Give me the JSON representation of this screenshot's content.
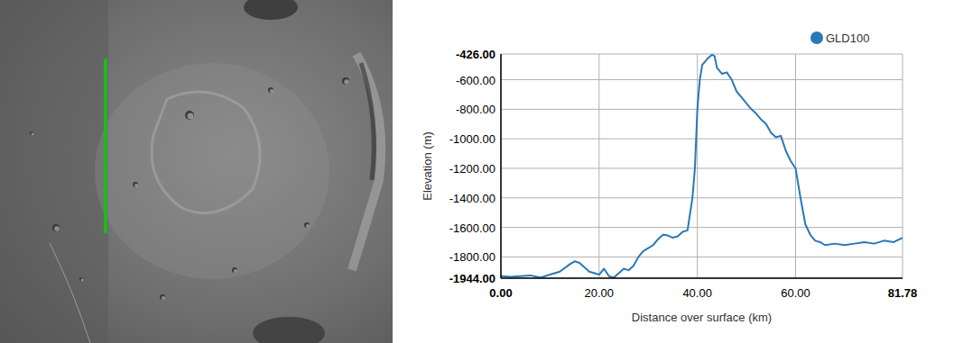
{
  "chart_data": {
    "type": "line",
    "x_label": "Distance over surface (km)",
    "y_label": "Elevation (m)",
    "x": [
      0,
      2,
      4,
      6,
      8,
      10,
      12,
      14,
      15,
      16,
      18,
      20,
      21,
      22,
      23,
      24,
      25,
      26,
      27,
      28,
      29,
      30,
      31,
      32,
      33,
      34,
      35,
      36,
      37,
      38,
      39,
      39.5,
      40,
      40.5,
      41,
      42,
      43,
      43.5,
      44,
      45,
      46,
      47,
      48,
      49,
      50,
      51,
      52,
      53,
      54,
      55,
      56,
      57,
      58,
      59,
      60,
      61,
      62,
      63,
      64,
      65,
      66,
      68,
      70,
      72,
      74,
      76,
      78,
      80,
      81.78
    ],
    "series": [
      {
        "name": "GLD100",
        "color": "#2a78b8",
        "values": [
          -1930,
          -1935,
          -1930,
          -1925,
          -1940,
          -1920,
          -1900,
          -1850,
          -1830,
          -1840,
          -1900,
          -1920,
          -1880,
          -1930,
          -1940,
          -1910,
          -1880,
          -1890,
          -1860,
          -1800,
          -1760,
          -1740,
          -1720,
          -1680,
          -1650,
          -1655,
          -1670,
          -1660,
          -1630,
          -1620,
          -1400,
          -1200,
          -800,
          -600,
          -500,
          -460,
          -430,
          -440,
          -520,
          -560,
          -550,
          -600,
          -680,
          -720,
          -760,
          -800,
          -830,
          -870,
          -900,
          -960,
          -990,
          -980,
          -1080,
          -1150,
          -1200,
          -1400,
          -1580,
          -1650,
          -1690,
          -1700,
          -1720,
          -1710,
          -1720,
          -1710,
          -1700,
          -1710,
          -1690,
          -1700,
          -1670
        ]
      }
    ],
    "xlim": [
      0,
      81.78
    ],
    "ylim": [
      -1944,
      -426
    ],
    "xticks": [
      {
        "value": 0,
        "label": "0.00"
      },
      {
        "value": 20,
        "label": "20.00"
      },
      {
        "value": 40,
        "label": "40.00"
      },
      {
        "value": 60,
        "label": "60.00"
      },
      {
        "value": 81.78,
        "label": "81.78"
      }
    ],
    "yticks": [
      {
        "value": -1944,
        "label": "-1944.00"
      },
      {
        "value": -1800,
        "label": "-1800.00"
      },
      {
        "value": -1600,
        "label": "-1600.00"
      },
      {
        "value": -1400,
        "label": "-1400.00"
      },
      {
        "value": -1200,
        "label": "-1200.00"
      },
      {
        "value": -1000,
        "label": "-1000.00"
      },
      {
        "value": -800,
        "label": "-800.00"
      },
      {
        "value": -600,
        "label": "-600.00"
      },
      {
        "value": -426,
        "label": "-426.00"
      }
    ],
    "grid": true,
    "legend": "top-right"
  }
}
